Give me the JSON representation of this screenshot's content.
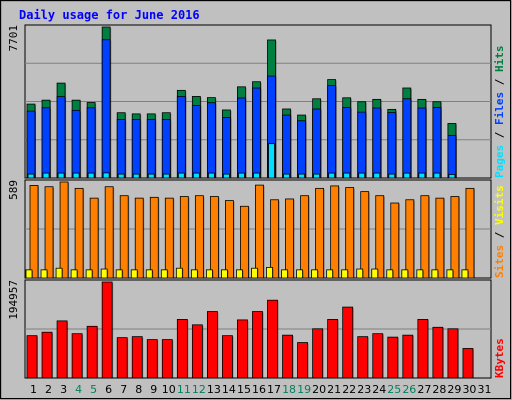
{
  "chart_data": {
    "type": "bar",
    "title": "Daily usage for June 2016",
    "days": [
      "1",
      "2",
      "3",
      "4",
      "5",
      "6",
      "7",
      "8",
      "9",
      "10",
      "11",
      "12",
      "13",
      "14",
      "15",
      "16",
      "17",
      "18",
      "19",
      "20",
      "21",
      "22",
      "23",
      "24",
      "25",
      "26",
      "27",
      "28",
      "29",
      "30",
      "31"
    ],
    "weekend_days": [
      4,
      5,
      11,
      12,
      18,
      19,
      25,
      26
    ],
    "colors": {
      "title": "#0000ff",
      "day_weekday": "#000000",
      "day_weekend": "#00805c",
      "hits": "#008040",
      "files": "#0040ff",
      "pages": "#00e0ff",
      "sites": "#ff8000",
      "visits": "#ffff00",
      "kbytes": "#ff0000",
      "plot_bg": "#c0c0c0",
      "grid": "#808080"
    },
    "panels": [
      {
        "id": "hits_files_pages",
        "max_label": "7701",
        "ymax": 7701,
        "legend": [
          {
            "text": "Pages",
            "color": "#00e0ff"
          },
          {
            "text": " / ",
            "color": "#000000"
          },
          {
            "text": "Files",
            "color": "#0040ff"
          },
          {
            "text": " / ",
            "color": "#000000"
          },
          {
            "text": "Hits",
            "color": "#008040"
          }
        ],
        "series": [
          {
            "name": "Hits",
            "color": "#008040",
            "values": [
              3770,
              3970,
              4840,
              3970,
              3850,
              7701,
              3330,
              3270,
              3270,
              3330,
              4470,
              4160,
              4100,
              3470,
              4650,
              4910,
              7040,
              3520,
              3210,
              4040,
              5020,
              4090,
              3890,
              4010,
              3500,
              4590,
              4010,
              3890,
              2780,
              0,
              0
            ]
          },
          {
            "name": "Files",
            "color": "#0040ff",
            "values": [
              3410,
              3580,
              4150,
              3450,
              3580,
              7050,
              2980,
              2980,
              2980,
              2980,
              4160,
              3700,
              3840,
              3090,
              4080,
              4590,
              5200,
              3210,
              2920,
              3520,
              4710,
              3590,
              3360,
              3570,
              3340,
              4040,
              3570,
              3600,
              2170,
              0,
              0
            ]
          },
          {
            "name": "Pages",
            "color": "#00e0ff",
            "values": [
              200,
              250,
              250,
              250,
              250,
              260,
              200,
              200,
              200,
              200,
              250,
              250,
              250,
              200,
              250,
              250,
              1750,
              200,
              200,
              200,
              250,
              250,
              250,
              250,
              200,
              250,
              250,
              250,
              180,
              0,
              0
            ]
          }
        ]
      },
      {
        "id": "sites_visits",
        "max_label": "589",
        "ymax": 589,
        "legend": [
          {
            "text": "Sites",
            "color": "#ff8000"
          },
          {
            "text": " / ",
            "color": "#000000"
          },
          {
            "text": "Visits",
            "color": "#ffff00"
          }
        ],
        "series": [
          {
            "name": "Visits",
            "color": "#ff8000",
            "values": [
              568,
              560,
              589,
              550,
              490,
              560,
              505,
              490,
              495,
              490,
              500,
              505,
              500,
              475,
              440,
              570,
              480,
              485,
              505,
              550,
              565,
              555,
              530,
              505,
              460,
              480,
              505,
              490,
              500,
              550,
              0
            ]
          },
          {
            "name": "Sites",
            "color": "#ffff00",
            "values": [
              50,
              50,
              60,
              50,
              50,
              55,
              50,
              50,
              50,
              50,
              60,
              50,
              50,
              50,
              50,
              60,
              65,
              50,
              50,
              50,
              50,
              50,
              55,
              55,
              50,
              50,
              50,
              50,
              50,
              50,
              0
            ]
          }
        ]
      },
      {
        "id": "kbytes",
        "max_label": "194957",
        "ymax": 194957,
        "legend": [
          {
            "text": "KBytes",
            "color": "#ff0000"
          }
        ],
        "series": [
          {
            "name": "KBytes",
            "color": "#ff0000",
            "values": [
              86000,
              93000,
              116000,
              90000,
              105000,
              194957,
              82000,
              84000,
              78000,
              78000,
              119000,
              108000,
              135000,
              86000,
              118000,
              135000,
              158000,
              87000,
              72000,
              100000,
              119000,
              144000,
              84000,
              90000,
              83000,
              87000,
              119000,
              103000,
              100000,
              60000,
              0
            ]
          }
        ]
      }
    ]
  }
}
